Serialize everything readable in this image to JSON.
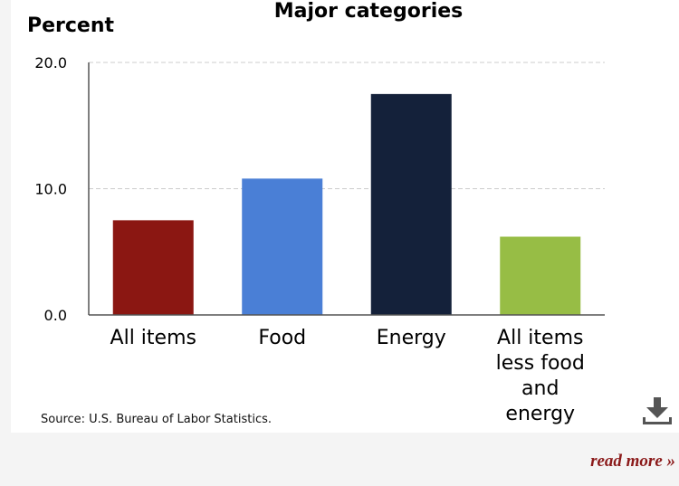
{
  "chart_data": {
    "type": "bar",
    "title": "Major categories",
    "ylabel": "Percent",
    "xlabel": "",
    "ylim": [
      0,
      20
    ],
    "yticks": [
      {
        "value": 0,
        "label": "0.0"
      },
      {
        "value": 10,
        "label": "10.0"
      },
      {
        "value": 20,
        "label": "20.0"
      }
    ],
    "grid": true,
    "legend": "none",
    "categories": [
      {
        "label_lines": [
          "All items"
        ],
        "value": 7.5,
        "color": "#8b1712"
      },
      {
        "label_lines": [
          "Food"
        ],
        "value": 10.8,
        "color": "#4a7fd6"
      },
      {
        "label_lines": [
          "Energy"
        ],
        "value": 17.5,
        "color": "#14213a"
      },
      {
        "label_lines": [
          "All items",
          "less food",
          "and",
          "energy"
        ],
        "value": 6.2,
        "color": "#97bd45"
      }
    ]
  },
  "source_text": "Source: U.S. Bureau of Labor Statistics.",
  "download_icon": "download-icon",
  "read_more_label": "read more »",
  "colors": {
    "grid": "#cccccc",
    "axis": "#555555",
    "link": "#8b1a1a"
  }
}
